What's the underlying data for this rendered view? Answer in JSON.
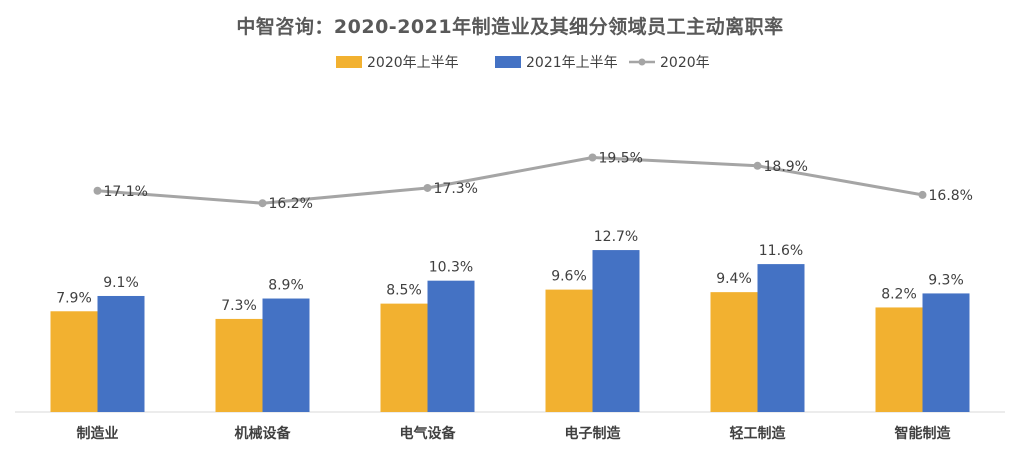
{
  "chart_data": {
    "type": "bar",
    "title": "中智咨询：2020-2021年制造业及其细分领域员工主动离职率",
    "categories": [
      "制造业",
      "机械设备",
      "电气设备",
      "电子制造",
      "轻工制造",
      "智能制造"
    ],
    "series": [
      {
        "name": "2020年上半年",
        "type": "bar",
        "color": "#F2B130",
        "values": [
          7.9,
          7.3,
          8.5,
          9.6,
          9.4,
          8.2
        ],
        "labels": [
          "7.9%",
          "7.3%",
          "8.5%",
          "9.6%",
          "9.4%",
          "8.2%"
        ]
      },
      {
        "name": "2021年上半年",
        "type": "bar",
        "color": "#4472C4",
        "values": [
          9.1,
          8.9,
          10.3,
          12.7,
          11.6,
          9.3
        ],
        "labels": [
          "9.1%",
          "8.9%",
          "10.3%",
          "12.7%",
          "11.6%",
          "9.3%"
        ]
      },
      {
        "name": "2020年",
        "type": "line",
        "color": "#A5A5A5",
        "values": [
          17.1,
          16.2,
          17.3,
          19.5,
          18.9,
          16.8
        ],
        "labels": [
          "17.1%",
          "16.2%",
          "17.3%",
          "19.5%",
          "18.9%",
          "16.8%"
        ]
      }
    ],
    "legend_position": "top",
    "grid": false,
    "xlabel": "",
    "ylabel": ""
  }
}
